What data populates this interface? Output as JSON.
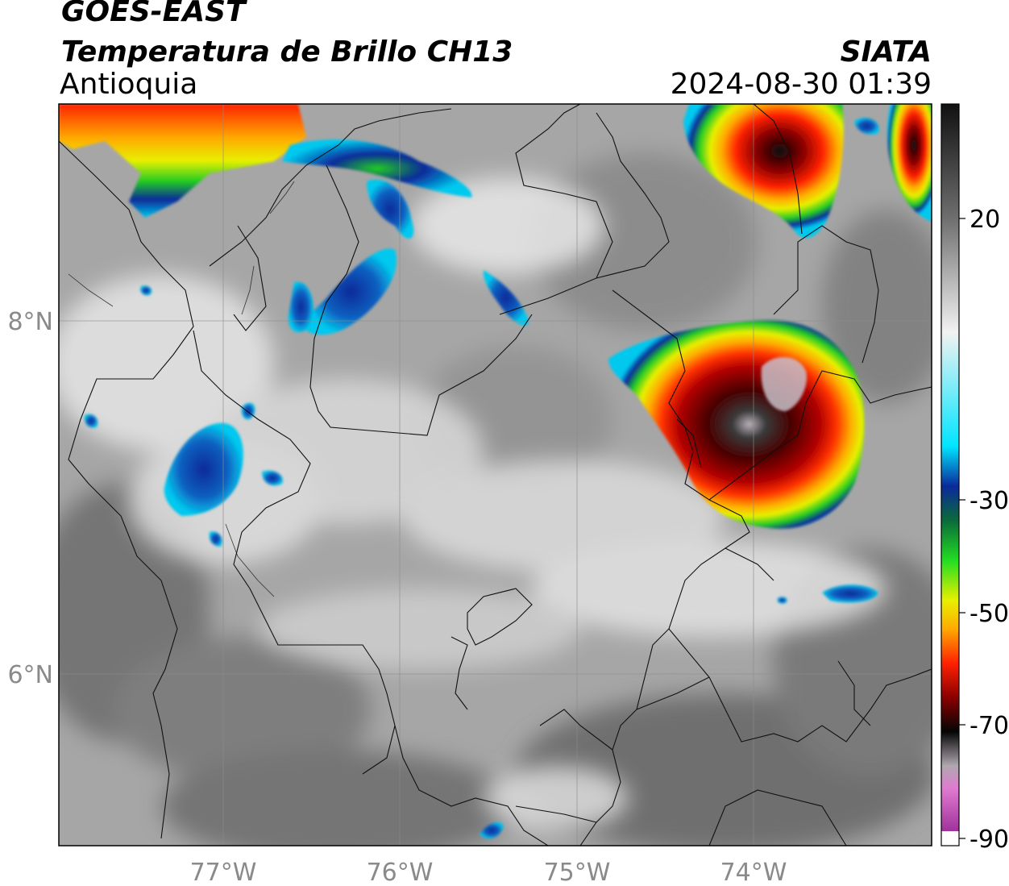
{
  "header": {
    "satellite": "GOES-EAST",
    "product": "Temperatura de Brillo CH13",
    "region": "Antioquia",
    "brand": "SIATA",
    "datetime": "2024-08-30 01:39"
  },
  "axes": {
    "lon_ticks": [
      "77°W",
      "76°W",
      "75°W",
      "74°W"
    ],
    "lat_ticks": [
      "8°N",
      "6°N"
    ]
  },
  "colorbar": {
    "tick_labels": [
      "20",
      "-30",
      "-50",
      "-70",
      "-90"
    ],
    "scale": [
      {
        "t": 40,
        "color": "#111111"
      },
      {
        "t": 20,
        "color": "#6e6e6e"
      },
      {
        "t": 0,
        "color": "#f2f2f2"
      },
      {
        "t": -20,
        "color": "#00e5ff"
      },
      {
        "t": -27,
        "color": "#0a2a9a"
      },
      {
        "t": -33,
        "color": "#0b6a3a"
      },
      {
        "t": -40,
        "color": "#22dd22"
      },
      {
        "t": -47,
        "color": "#e8f000"
      },
      {
        "t": -52,
        "color": "#ffaa00"
      },
      {
        "t": -58,
        "color": "#ff2200"
      },
      {
        "t": -64,
        "color": "#8a0000"
      },
      {
        "t": -70,
        "color": "#050505"
      },
      {
        "t": -76,
        "color": "#b0a8b0"
      },
      {
        "t": -80,
        "color": "#e07ad0"
      },
      {
        "t": -90,
        "color": "#8a1a8a"
      }
    ]
  },
  "colors": {
    "land_dark": "#6f6f6f",
    "land_mid": "#9a9a9a",
    "cloud_light": "#d6d6d6",
    "cloud_bright": "#eeeeee",
    "boundary": "#111111",
    "grid": "#8c8c8c"
  }
}
